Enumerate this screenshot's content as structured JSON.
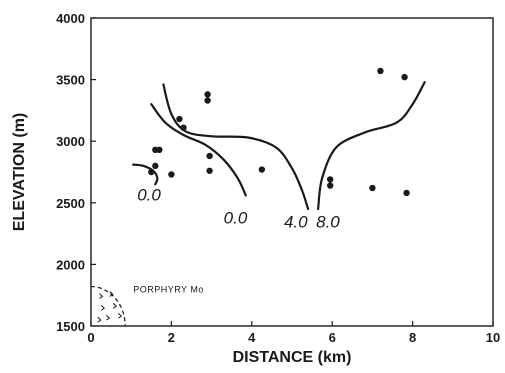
{
  "chart_data": {
    "type": "scatter",
    "title": "",
    "xlabel": "DISTANCE (km)",
    "ylabel": "ELEVATION (m)",
    "xlim": [
      0,
      10
    ],
    "ylim": [
      1500,
      4000
    ],
    "xticks": [
      0,
      2,
      4,
      6,
      8,
      10
    ],
    "yticks": [
      1500,
      2000,
      2500,
      3000,
      3500,
      4000
    ],
    "grid": false,
    "points": [
      {
        "x": 1.5,
        "y": 2750
      },
      {
        "x": 1.6,
        "y": 2800
      },
      {
        "x": 1.6,
        "y": 2930
      },
      {
        "x": 1.7,
        "y": 2930
      },
      {
        "x": 2.0,
        "y": 2730
      },
      {
        "x": 2.2,
        "y": 3180
      },
      {
        "x": 2.3,
        "y": 3110
      },
      {
        "x": 2.9,
        "y": 3380
      },
      {
        "x": 2.9,
        "y": 3330
      },
      {
        "x": 2.95,
        "y": 2880
      },
      {
        "x": 2.95,
        "y": 2760
      },
      {
        "x": 4.25,
        "y": 2770
      },
      {
        "x": 5.95,
        "y": 2690
      },
      {
        "x": 5.95,
        "y": 2640
      },
      {
        "x": 7.0,
        "y": 2620
      },
      {
        "x": 7.2,
        "y": 3570
      },
      {
        "x": 7.8,
        "y": 3520
      },
      {
        "x": 7.85,
        "y": 2580
      }
    ],
    "contours": [
      {
        "label": "0.0",
        "label_at": {
          "x": 1.15,
          "y": 2520
        },
        "points": [
          [
            1.05,
            2810
          ],
          [
            1.3,
            2800
          ],
          [
            1.55,
            2760
          ],
          [
            1.65,
            2700
          ],
          [
            1.6,
            2650
          ]
        ]
      },
      {
        "label": "0.0",
        "label_at": {
          "x": 3.3,
          "y": 2330
        },
        "points": [
          [
            1.5,
            3300
          ],
          [
            1.85,
            3150
          ],
          [
            2.3,
            3050
          ],
          [
            2.85,
            2970
          ],
          [
            3.3,
            2850
          ],
          [
            3.65,
            2700
          ],
          [
            3.85,
            2560
          ]
        ]
      },
      {
        "label": "4.0",
        "label_at": {
          "x": 4.8,
          "y": 2300
        },
        "points": [
          [
            1.8,
            3460
          ],
          [
            2.0,
            3220
          ],
          [
            2.35,
            3080
          ],
          [
            3.0,
            3040
          ],
          [
            3.9,
            3030
          ],
          [
            4.6,
            2950
          ],
          [
            5.0,
            2780
          ],
          [
            5.25,
            2600
          ],
          [
            5.4,
            2450
          ]
        ]
      },
      {
        "label": "8.0",
        "label_at": {
          "x": 5.6,
          "y": 2300
        },
        "points": [
          [
            5.65,
            2450
          ],
          [
            5.75,
            2700
          ],
          [
            6.1,
            2950
          ],
          [
            6.8,
            3070
          ],
          [
            7.6,
            3150
          ],
          [
            8.0,
            3300
          ],
          [
            8.3,
            3480
          ]
        ]
      }
    ],
    "annotation": {
      "text": "PORPHYRY Mo",
      "at": {
        "x": 1.05,
        "y": 1770
      }
    },
    "porphyry_body": {
      "x_center": 0.0,
      "y_top": 1820,
      "x_right": 0.85
    }
  }
}
